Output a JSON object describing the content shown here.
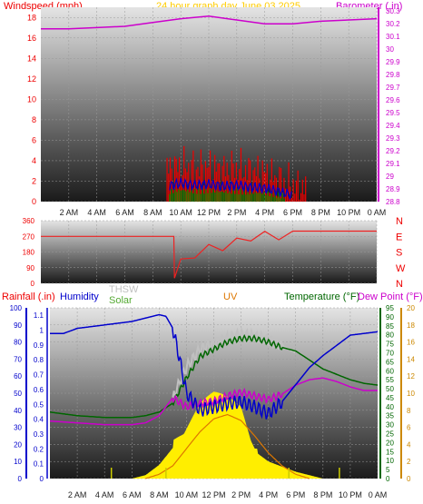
{
  "colors": {
    "wind_avg": "#ee0000",
    "wind_gust": "#0000cc",
    "wind_green": "#008800",
    "barometer": "#cc00cc",
    "direction": "#ee2222",
    "rain": "#0000cc",
    "humidity": "#0000cc",
    "thsw": "#c0c0c0",
    "solar": "#55aa33",
    "uv": "#dd7700",
    "temperature": "#006600",
    "dewpoint": "#cc00cc",
    "solar_fill": "#ffee00",
    "title": "#ffcc00"
  },
  "chart_data": [
    {
      "type": "bar",
      "panel": "wind-barometer",
      "title": "24 hour graph day   June 03 2025",
      "ylabel_left": "Windspeed (mph)",
      "ylabel_right": "Barometer (.in)",
      "x_ticks": [
        "2 AM",
        "4 AM",
        "6 AM",
        "8 AM",
        "10 AM",
        "12 PM",
        "2 PM",
        "4 PM",
        "6 PM",
        "8 PM",
        "10 PM",
        "0 AM"
      ],
      "y_left_ticks": [
        "0",
        "2",
        "4",
        "6",
        "8",
        "10",
        "12",
        "14",
        "16",
        "18"
      ],
      "y_right_ticks": [
        "28.8",
        "28.9",
        "29",
        "29.1",
        "29.2",
        "29.3",
        "29.4",
        "29.5",
        "29.6",
        "29.7",
        "29.8",
        "29.9",
        "30",
        "30.1",
        "30.2",
        "30.3"
      ],
      "ylim_left": [
        0,
        19
      ],
      "ylim_right": [
        28.8,
        30.33
      ],
      "x_range_hours": [
        0,
        24
      ],
      "series": [
        {
          "name": "Barometer",
          "x": [
            0,
            2,
            4,
            6,
            8,
            10,
            12,
            14,
            16,
            18,
            20,
            22,
            24
          ],
          "values": [
            30.16,
            30.16,
            30.17,
            30.18,
            30.21,
            30.24,
            30.26,
            30.23,
            30.2,
            30.2,
            30.22,
            30.23,
            30.24
          ]
        },
        {
          "name": "Wind avg",
          "x": [
            9,
            10,
            11,
            12,
            13,
            14,
            15,
            16,
            17,
            18,
            19
          ],
          "values": [
            3.2,
            3.5,
            3.3,
            3.4,
            3.1,
            3.3,
            3.0,
            2.8,
            2.2,
            1.6,
            1.2
          ]
        },
        {
          "name": "Wind gust",
          "x": [
            9,
            10,
            11,
            12,
            13,
            14,
            15,
            16,
            17,
            18
          ],
          "values": [
            1.5,
            1.8,
            1.6,
            1.7,
            1.5,
            1.6,
            1.4,
            1.3,
            1.0,
            0.6
          ]
        }
      ]
    },
    {
      "type": "line",
      "panel": "wind-direction",
      "y_ticks": [
        "0",
        "90",
        "180",
        "270",
        "360"
      ],
      "y_right_labels": [
        "N",
        "W",
        "S",
        "E",
        "N"
      ],
      "ylim": [
        0,
        360
      ],
      "series": [
        {
          "name": "Direction",
          "x": [
            0,
            9.5,
            9.55,
            10,
            11,
            12,
            13,
            14,
            15,
            16,
            17,
            18,
            20,
            22,
            24
          ],
          "values": [
            270,
            270,
            30,
            140,
            170,
            200,
            210,
            240,
            260,
            285,
            250,
            300,
            300,
            300,
            300
          ]
        }
      ]
    },
    {
      "type": "line",
      "panel": "climate",
      "labels": {
        "rain": "Rainfall (.in)",
        "humidity": "Humidity",
        "thsw": "THSW",
        "solar": "Solar",
        "uv": "UV",
        "temperature": "Temperature (°F)",
        "dewpoint": "Dew Point (°F)"
      },
      "rain_ticks": [
        "0",
        "0.1",
        "0.2",
        "0.3",
        "0.4",
        "0.5",
        "0.6",
        "0.7",
        "0.8",
        "0.9",
        "1",
        "1.1"
      ],
      "humidity_ticks": [
        "0",
        "10",
        "20",
        "30",
        "40",
        "50",
        "60",
        "70",
        "80",
        "90",
        "100"
      ],
      "temp_ticks": [
        "0",
        "5",
        "10",
        "15",
        "20",
        "25",
        "30",
        "35",
        "40",
        "45",
        "50",
        "55",
        "60",
        "65",
        "70",
        "75",
        "80",
        "85",
        "90",
        "95"
      ],
      "uv_ticks": [
        "0",
        "2",
        "4",
        "6",
        "8",
        "10",
        "12",
        "14",
        "16",
        "18",
        "20"
      ],
      "x_ticks": [
        "2 AM",
        "4 AM",
        "6 AM",
        "8 AM",
        "10 AM",
        "12 PM",
        "2 PM",
        "4 PM",
        "6 PM",
        "8 PM",
        "10 PM",
        "0 AM"
      ],
      "series": [
        {
          "name": "Humidity",
          "x": [
            0,
            1,
            2,
            4,
            6,
            7,
            8,
            8.5,
            9,
            9.5,
            10,
            11,
            12,
            13,
            14,
            15,
            16,
            17,
            18,
            19,
            20,
            21,
            22,
            23,
            24
          ],
          "values": [
            85,
            85,
            88,
            90,
            92,
            94,
            96,
            95,
            88,
            70,
            50,
            40,
            42,
            44,
            45,
            42,
            38,
            45,
            55,
            65,
            72,
            78,
            84,
            85,
            86
          ]
        },
        {
          "name": "Temperature",
          "x": [
            0,
            2,
            4,
            6,
            7,
            8,
            9,
            10,
            11,
            12,
            13,
            14,
            15,
            16,
            17,
            18,
            19,
            20,
            21,
            22,
            23,
            24
          ],
          "values": [
            37,
            35,
            34,
            34,
            35,
            37,
            42,
            56,
            68,
            72,
            76,
            78,
            78,
            76,
            73,
            71,
            66,
            61,
            58,
            55,
            53,
            52
          ]
        },
        {
          "name": "Dew Point",
          "x": [
            0,
            2,
            4,
            6,
            7,
            8,
            9,
            10,
            11,
            12,
            13,
            14,
            15,
            16,
            17,
            18,
            19,
            20,
            21,
            22,
            23,
            24
          ],
          "values": [
            32,
            31,
            30,
            30,
            31,
            35,
            45,
            40,
            42,
            43,
            46,
            48,
            46,
            44,
            47,
            52,
            55,
            56,
            54,
            51,
            49,
            49
          ]
        },
        {
          "name": "THSW",
          "x": [
            9,
            10,
            11,
            12,
            13,
            14,
            15,
            16,
            17,
            18
          ],
          "values": [
            45,
            62,
            72,
            75,
            78,
            80,
            79,
            77,
            74,
            70
          ]
        },
        {
          "name": "Solar",
          "x": [
            6,
            7,
            8,
            9,
            10,
            11,
            12,
            13,
            14,
            15,
            16,
            17,
            18,
            19,
            20
          ],
          "values": [
            0,
            2,
            8,
            18,
            28,
            38,
            42,
            40,
            38,
            16,
            10,
            7,
            4,
            2,
            0
          ]
        },
        {
          "name": "UV",
          "x": [
            7,
            8,
            9,
            10,
            11,
            12,
            13,
            14,
            15,
            16,
            17,
            18,
            19
          ],
          "values": [
            0,
            0.5,
            1.5,
            3.5,
            5.5,
            7,
            7.5,
            6.8,
            5,
            3,
            1.5,
            0.5,
            0
          ]
        }
      ]
    }
  ]
}
